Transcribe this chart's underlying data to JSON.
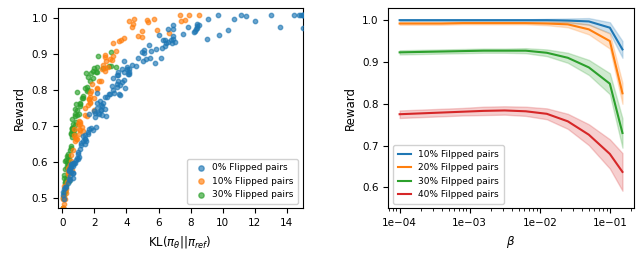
{
  "left_scatter": {
    "colors": [
      "#1f77b4",
      "#ff7f0e",
      "#2ca02c"
    ],
    "labels": [
      "0% Flipped pairs",
      "10% Flipped pairs",
      "30% Flipped pairs"
    ],
    "ylabel": "Reward",
    "xlim": [
      -0.3,
      15
    ],
    "ylim": [
      0.47,
      1.03
    ],
    "yticks": [
      0.5,
      0.6,
      0.7,
      0.8,
      0.9,
      1.0
    ],
    "xticks": [
      0,
      2,
      4,
      6,
      8,
      10,
      12,
      14
    ]
  },
  "right_lines": {
    "colors": [
      "#1f77b4",
      "#ff7f0e",
      "#2ca02c",
      "#d62728"
    ],
    "labels": [
      "10% Filpped pairs",
      "20% Filpped pairs",
      "30% Filpped pairs",
      "40% Filpped pairs"
    ],
    "ylabel": "Reward",
    "beta_values": [
      -4.0,
      -3.7,
      -3.4,
      -3.1,
      -2.8,
      -2.5,
      -2.2,
      -1.9,
      -1.6,
      -1.3,
      -1.0,
      -0.82
    ],
    "means": [
      [
        1.0,
        1.0,
        1.0,
        1.0,
        1.0,
        1.0,
        1.0,
        1.0,
        0.999,
        0.997,
        0.982,
        0.93
      ],
      [
        0.992,
        0.992,
        0.992,
        0.993,
        0.993,
        0.993,
        0.993,
        0.992,
        0.99,
        0.978,
        0.95,
        0.825
      ],
      [
        0.923,
        0.924,
        0.925,
        0.926,
        0.927,
        0.927,
        0.927,
        0.922,
        0.91,
        0.887,
        0.848,
        0.73
      ],
      [
        0.775,
        0.777,
        0.779,
        0.781,
        0.783,
        0.784,
        0.782,
        0.776,
        0.758,
        0.726,
        0.68,
        0.637
      ]
    ],
    "stds": [
      [
        0.002,
        0.002,
        0.002,
        0.002,
        0.002,
        0.002,
        0.002,
        0.003,
        0.005,
        0.008,
        0.013,
        0.02
      ],
      [
        0.003,
        0.003,
        0.003,
        0.003,
        0.003,
        0.003,
        0.003,
        0.004,
        0.007,
        0.012,
        0.018,
        0.025
      ],
      [
        0.005,
        0.005,
        0.005,
        0.005,
        0.005,
        0.005,
        0.006,
        0.008,
        0.012,
        0.018,
        0.025,
        0.035
      ],
      [
        0.009,
        0.009,
        0.009,
        0.009,
        0.01,
        0.01,
        0.011,
        0.013,
        0.018,
        0.025,
        0.035,
        0.045
      ]
    ],
    "ylim": [
      0.55,
      1.03
    ],
    "yticks": [
      0.6,
      0.7,
      0.8,
      0.9,
      1.0
    ]
  }
}
